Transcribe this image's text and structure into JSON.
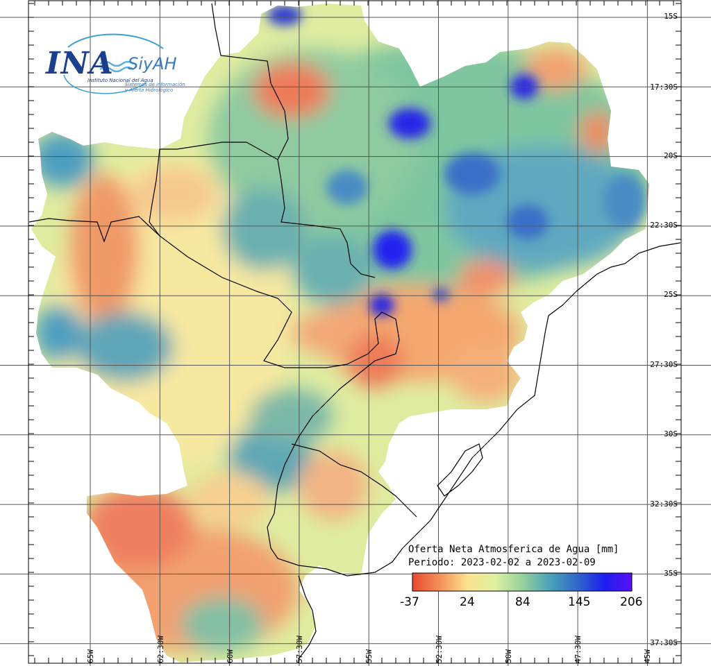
{
  "map": {
    "title": "Oferta Neta Atmosferica de Agua [mm]",
    "period": "Periodo: 2023-02-02 a 2023-02-09",
    "colorbar": {
      "labels": [
        "-37",
        "24",
        "84",
        "145",
        "206"
      ],
      "colors": [
        "#e8482f",
        "#f3915a",
        "#fce28f",
        "#dff0a0",
        "#96d29b",
        "#4aa3b8",
        "#2f69c9",
        "#1d1ef0",
        "#5a11f5"
      ]
    },
    "lat_labels": [
      "15S",
      "17:30S",
      "20S",
      "22:30S",
      "25S",
      "27:30S",
      "30S",
      "32:30S",
      "35S",
      "37:30S"
    ],
    "lon_labels": [
      "65W",
      "62:30W",
      "60W",
      "57:30W",
      "55W",
      "52:30W",
      "50W",
      "47:30W",
      "45W"
    ]
  },
  "logo": {
    "name": "INA",
    "system": "SiyAH",
    "org": "Instituto Nacional del Agua",
    "tagline": "Sistemas de información y Alerta Hidrológico"
  },
  "style": {
    "grid_color": "#555555",
    "border_color": "#000000"
  }
}
